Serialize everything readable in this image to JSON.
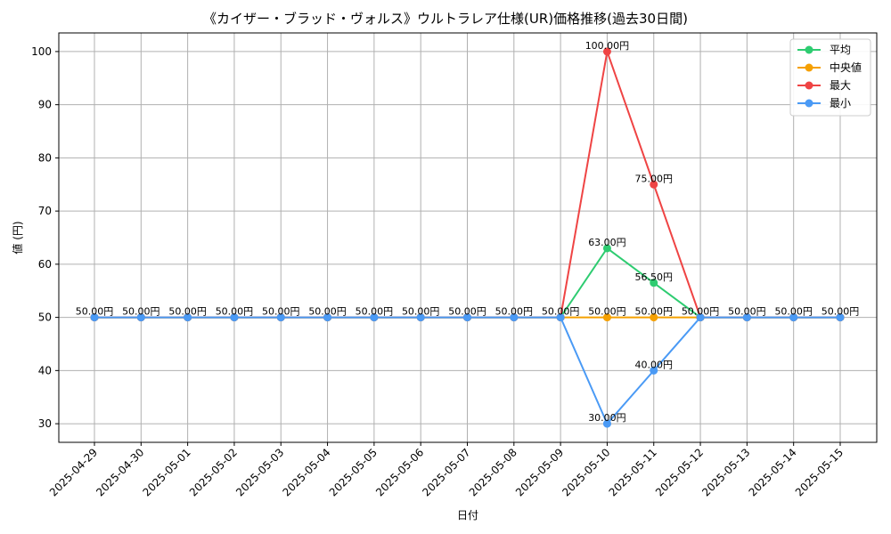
{
  "chart_data": {
    "type": "line",
    "title": "《カイザー・ブラッド・ヴォルス》ウルトラレア仕様(UR)価格推移(過去30日間)",
    "xlabel": "日付",
    "ylabel": "値 (円)",
    "ylim": [
      26.5,
      103.5
    ],
    "yticks": [
      30,
      40,
      50,
      60,
      70,
      80,
      90,
      100
    ],
    "grid": true,
    "legend_position": "top-right",
    "categories": [
      "2025-04-29",
      "2025-04-30",
      "2025-05-01",
      "2025-05-02",
      "2025-05-03",
      "2025-05-04",
      "2025-05-05",
      "2025-05-06",
      "2025-05-07",
      "2025-05-08",
      "2025-05-09",
      "2025-05-10",
      "2025-05-11",
      "2025-05-12",
      "2025-05-13",
      "2025-05-14",
      "2025-05-15"
    ],
    "series": [
      {
        "name": "平均",
        "color": "#2ecc71",
        "values": [
          50,
          50,
          50,
          50,
          50,
          50,
          50,
          50,
          50,
          50,
          50,
          63,
          56.5,
          50,
          50,
          50,
          50
        ]
      },
      {
        "name": "中央値",
        "color": "#f5a000",
        "values": [
          50,
          50,
          50,
          50,
          50,
          50,
          50,
          50,
          50,
          50,
          50,
          50,
          50,
          50,
          50,
          50,
          50
        ]
      },
      {
        "name": "最大",
        "color": "#ef4444",
        "values": [
          50,
          50,
          50,
          50,
          50,
          50,
          50,
          50,
          50,
          50,
          50,
          100,
          75,
          50,
          50,
          50,
          50
        ]
      },
      {
        "name": "最小",
        "color": "#4a9af5",
        "values": [
          50,
          50,
          50,
          50,
          50,
          50,
          50,
          50,
          50,
          50,
          50,
          30,
          40,
          50,
          50,
          50,
          50
        ]
      }
    ],
    "data_labels": {
      "suffix": "円",
      "points": [
        {
          "x": "2025-04-29",
          "y": 50,
          "text": "50.00円"
        },
        {
          "x": "2025-04-30",
          "y": 50,
          "text": "50.00円"
        },
        {
          "x": "2025-05-01",
          "y": 50,
          "text": "50.00円"
        },
        {
          "x": "2025-05-02",
          "y": 50,
          "text": "50.00円"
        },
        {
          "x": "2025-05-03",
          "y": 50,
          "text": "50.00円"
        },
        {
          "x": "2025-05-04",
          "y": 50,
          "text": "50.00円"
        },
        {
          "x": "2025-05-05",
          "y": 50,
          "text": "50.00円"
        },
        {
          "x": "2025-05-06",
          "y": 50,
          "text": "50.00円"
        },
        {
          "x": "2025-05-07",
          "y": 50,
          "text": "50.00円"
        },
        {
          "x": "2025-05-08",
          "y": 50,
          "text": "50.00円"
        },
        {
          "x": "2025-05-09",
          "y": 50,
          "text": "50.00円"
        },
        {
          "x": "2025-05-10",
          "y": 100,
          "text": "100.00円"
        },
        {
          "x": "2025-05-10",
          "y": 63,
          "text": "63.00円"
        },
        {
          "x": "2025-05-10",
          "y": 50,
          "text": "50.00円"
        },
        {
          "x": "2025-05-10",
          "y": 30,
          "text": "30.00円"
        },
        {
          "x": "2025-05-11",
          "y": 75,
          "text": "75.00円"
        },
        {
          "x": "2025-05-11",
          "y": 56.5,
          "text": "56.50円"
        },
        {
          "x": "2025-05-11",
          "y": 50,
          "text": "50.00円"
        },
        {
          "x": "2025-05-11",
          "y": 40,
          "text": "40.00円"
        },
        {
          "x": "2025-05-12",
          "y": 50,
          "text": "50.00円"
        },
        {
          "x": "2025-05-13",
          "y": 50,
          "text": "50.00円"
        },
        {
          "x": "2025-05-14",
          "y": 50,
          "text": "50.00円"
        },
        {
          "x": "2025-05-15",
          "y": 50,
          "text": "50.00円"
        }
      ]
    }
  }
}
